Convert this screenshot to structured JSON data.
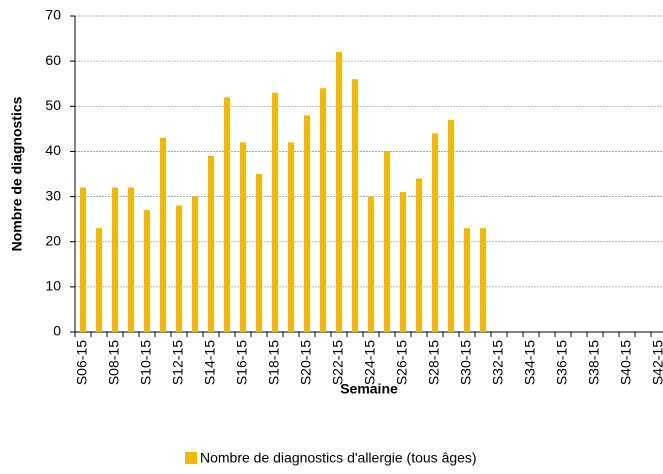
{
  "chart_data": {
    "type": "bar",
    "x_label": "Semaine",
    "y_label": "Nombre de diagnostics",
    "categories": [
      "S06-15",
      null,
      "S08-15",
      null,
      "S10-15",
      null,
      "S12-15",
      null,
      "S14-15",
      null,
      "S16-15",
      null,
      "S18-15",
      null,
      "S20-15",
      null,
      "S22-15",
      null,
      "S24-15",
      null,
      "S26-15",
      null,
      "S28-15",
      null,
      "S30-15",
      null,
      "S32-15",
      null,
      "S34-15",
      null,
      "S36-15",
      null,
      "S38-15",
      null,
      "S40-15",
      null,
      "S42-15"
    ],
    "series": [
      {
        "name": "Nombre de diagnostics d'allergie (tous âges)",
        "color": "#f5b800",
        "values": [
          32,
          23,
          32,
          32,
          27,
          43,
          28,
          30,
          39,
          52,
          42,
          35,
          53,
          42,
          48,
          54,
          62,
          56,
          30,
          40,
          31,
          34,
          44,
          47,
          23,
          23,
          null,
          null,
          null,
          null,
          null,
          null,
          null,
          null,
          null,
          null,
          null
        ]
      }
    ],
    "ylim": [
      0,
      70
    ],
    "yticks": [
      0,
      10,
      20,
      30,
      40,
      50,
      60,
      70
    ],
    "grid": true,
    "legend": "bottom"
  }
}
